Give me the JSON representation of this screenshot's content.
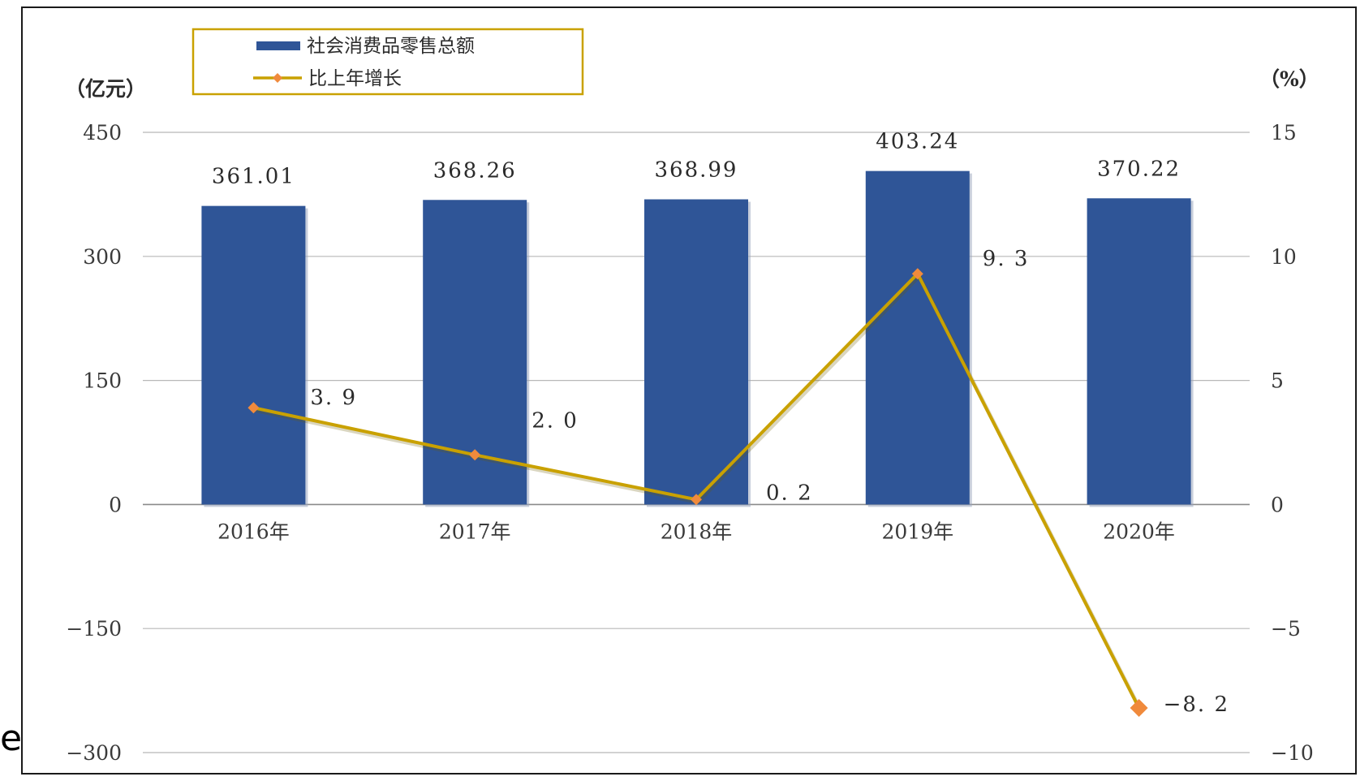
{
  "chart_data": {
    "type": "bar",
    "categories": [
      "2016年",
      "2017年",
      "2018年",
      "2019年",
      "2020年"
    ],
    "series": [
      {
        "name": "社会消费品零售总额",
        "kind": "bar",
        "axis": "left",
        "color": "#2F5597",
        "values": [
          361.01,
          368.26,
          368.99,
          403.24,
          370.22
        ],
        "labels": [
          "361.01",
          "368.26",
          "368.99",
          "403.24",
          "370.22"
        ]
      },
      {
        "name": "比上年增长",
        "kind": "line",
        "axis": "right",
        "color": "#C9A100",
        "marker_color": "#F08A3C",
        "values": [
          3.9,
          2.0,
          0.2,
          9.3,
          -8.2
        ],
        "labels": [
          "3. 9",
          "2. 0",
          "0. 2",
          "9. 3",
          "−8. 2"
        ]
      }
    ],
    "left_axis": {
      "unit": "（亿元）",
      "range": [
        -300,
        450
      ],
      "ticks": [
        450,
        300,
        150,
        0,
        -150,
        -300
      ],
      "tick_labels": [
        "450",
        "300",
        "150",
        "0",
        "−150",
        "−300"
      ]
    },
    "right_axis": {
      "unit": "（%）",
      "range": [
        -10,
        15
      ],
      "ticks": [
        15,
        10,
        5,
        0,
        -5,
        -10
      ],
      "tick_labels": [
        "15",
        "10",
        "5",
        "0",
        "−5",
        "−10"
      ]
    },
    "grid": true,
    "legend": {
      "position": "top-left",
      "border_color": "#C9A100"
    }
  },
  "corner_glyph": "e"
}
